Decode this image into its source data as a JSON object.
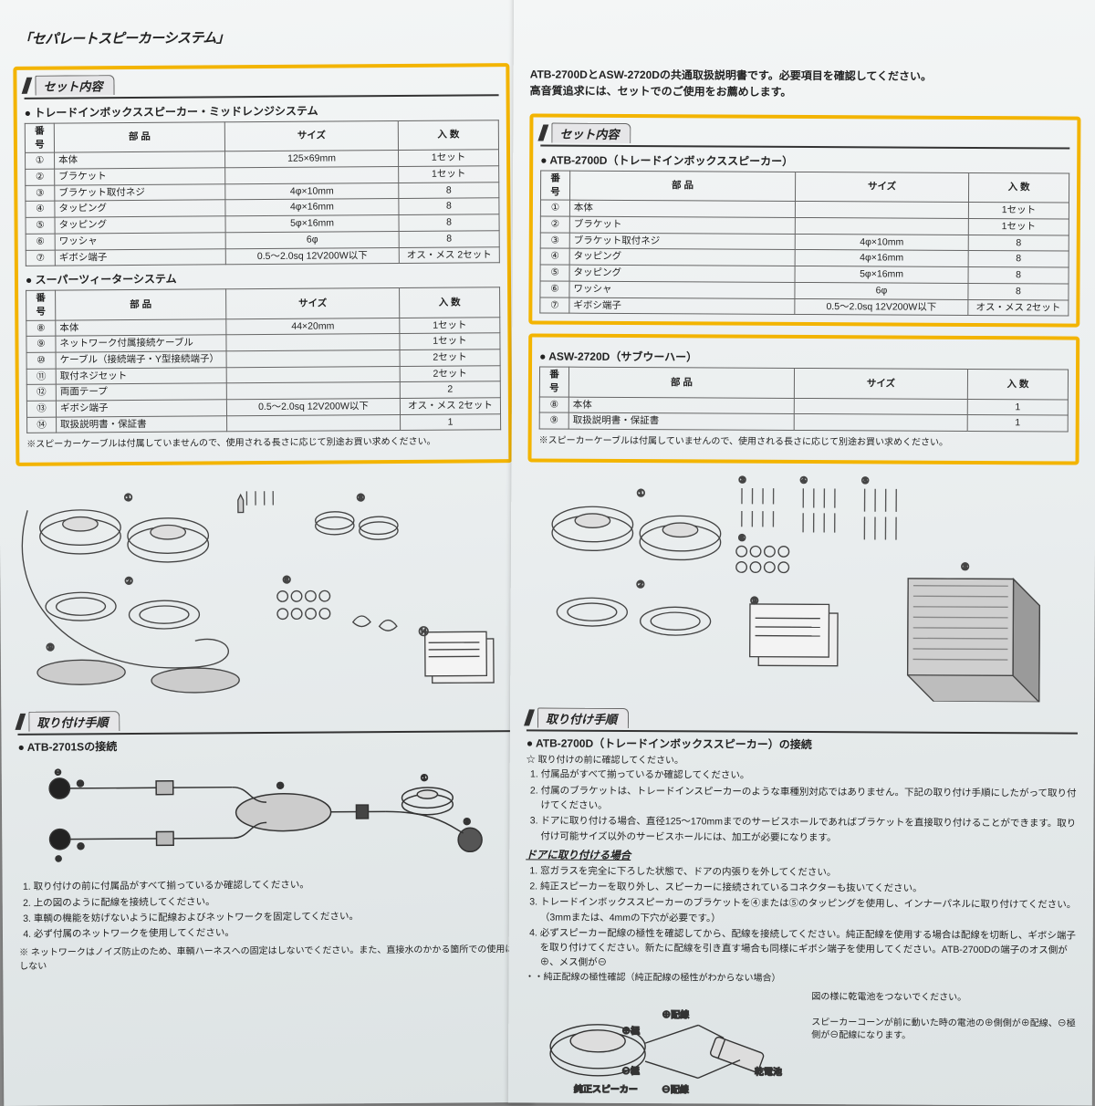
{
  "left": {
    "product_title": "「セパレートスピーカーシステム」",
    "section_set": "セット内容",
    "sub1": "トレードインボックススピーカー・ミッドレンジシステム",
    "sub2": "スーパーツィーターシステム",
    "th_num": "番 号",
    "th_part": "部 品",
    "th_size": "サイズ",
    "th_qty": "入 数",
    "t1": [
      {
        "n": "①",
        "p": "本体",
        "s": "125×69mm",
        "q": "1セット"
      },
      {
        "n": "②",
        "p": "ブラケット",
        "s": "",
        "q": "1セット"
      },
      {
        "n": "③",
        "p": "ブラケット取付ネジ",
        "s": "4φ×10mm",
        "q": "8"
      },
      {
        "n": "④",
        "p": "タッピング",
        "s": "4φ×16mm",
        "q": "8"
      },
      {
        "n": "⑤",
        "p": "タッピング",
        "s": "5φ×16mm",
        "q": "8"
      },
      {
        "n": "⑥",
        "p": "ワッシャ",
        "s": "6φ",
        "q": "8"
      },
      {
        "n": "⑦",
        "p": "ギボシ端子",
        "s": "0.5～2.0sq 12V200W以下",
        "q": "オス・メス 2セット"
      }
    ],
    "t2": [
      {
        "n": "⑧",
        "p": "本体",
        "s": "44×20mm",
        "q": "1セット"
      },
      {
        "n": "⑨",
        "p": "ネットワーク付属接続ケーブル",
        "s": "",
        "q": "1セット"
      },
      {
        "n": "⑩",
        "p": "ケーブル（接続端子・Y型接続端子）",
        "s": "",
        "q": "2セット"
      },
      {
        "n": "⑪",
        "p": "取付ネジセット",
        "s": "",
        "q": "2セット"
      },
      {
        "n": "⑫",
        "p": "両面テープ",
        "s": "",
        "q": "2"
      },
      {
        "n": "⑬",
        "p": "ギボシ端子",
        "s": "0.5～2.0sq 12V200W以下",
        "q": "オス・メス 2セット"
      },
      {
        "n": "⑭",
        "p": "取扱説明書・保証書",
        "s": "",
        "q": "1"
      }
    ],
    "cable_note": "※スピーカーケーブルは付属していませんので、使用される長さに応じて別途お買い求めください。",
    "section_proc": "取り付け手順",
    "proc_sub": "ATB-2701Sの接続",
    "proc": [
      "取り付けの前に付属品がすべて揃っているか確認してください。",
      "上の図のように配線を接続してください。",
      "車輌の機能を妨げないように配線およびネットワークを固定してください。",
      "必ず付属のネットワークを使用してください。"
    ],
    "proc_note": "※ ネットワークはノイズ防止のため、車輌ハーネスへの固定はしないでください。また、直接水のかかる箇所での使用はしない"
  },
  "right": {
    "intro1": "ATB-2700DとASW-2720Dの共通取扱説明書です。必要項目を確認してください。",
    "intro2": "高音質追求には、セットでのご使用をお薦めします。",
    "section_set": "セット内容",
    "sub1": "ATB-2700D（トレードインボックススピーカー）",
    "sub2": "ASW-2720D（サブウーハー）",
    "th_num": "番 号",
    "th_part": "部 品",
    "th_size": "サイズ",
    "th_qty": "入 数",
    "t1": [
      {
        "n": "①",
        "p": "本体",
        "s": "",
        "q": "1セット"
      },
      {
        "n": "②",
        "p": "ブラケット",
        "s": "",
        "q": "1セット"
      },
      {
        "n": "③",
        "p": "ブラケット取付ネジ",
        "s": "4φ×10mm",
        "q": "8"
      },
      {
        "n": "④",
        "p": "タッピング",
        "s": "4φ×16mm",
        "q": "8"
      },
      {
        "n": "⑤",
        "p": "タッピング",
        "s": "5φ×16mm",
        "q": "8"
      },
      {
        "n": "⑥",
        "p": "ワッシャ",
        "s": "6φ",
        "q": "8"
      },
      {
        "n": "⑦",
        "p": "ギボシ端子",
        "s": "0.5～2.0sq 12V200W以下",
        "q": "オス・メス 2セット"
      }
    ],
    "t2": [
      {
        "n": "⑧",
        "p": "本体",
        "s": "",
        "q": "1"
      },
      {
        "n": "⑨",
        "p": "取扱説明書・保証書",
        "s": "",
        "q": "1"
      }
    ],
    "cable_note": "※スピーカーケーブルは付属していませんので、使用される長さに応じて別途お買い求めください。",
    "section_proc": "取り付け手順",
    "proc_sub": "ATB-2700D（トレードインボックススピーカー）の接続",
    "pre": "取り付けの前に確認してください。",
    "proc1": [
      "付属品がすべて揃っているか確認してください。",
      "付属のブラケットは、トレードインスピーカーのような車種別対応ではありません。下記の取り付け手順にしたがって取り付けてください。",
      "ドアに取り付ける場合、直径125～170mmまでのサービスホールであればブラケットを直接取り付けることができます。取り付け可能サイズ以外のサービスホールには、加工が必要になります。"
    ],
    "door_head": "ドアに取り付ける場合",
    "proc2": [
      "窓ガラスを完全に下ろした状態で、ドアの内張りを外してください。",
      "純正スピーカーを取り外し、スピーカーに接続されているコネクターも抜いてください。",
      "トレードインボックススピーカーのブラケットを④または⑤のタッピングを使用し、インナーパネルに取り付けてください。（3mmまたは、4mmの下穴が必要です。）",
      "必ずスピーカー配線の極性を確認してから、配線を接続してください。純正配線を使用する場合は配線を切断し、ギボシ端子を取り付けてください。新たに配線を引き直す場合も同様にギボシ端子を使用してください。ATB-2700Dの端子のオス側が⊕、メス側が⊖"
    ],
    "pol_head": "・純正配線の極性確認（純正配線の極性がわからない場合）",
    "pol_labels": {
      "wplus": "⊕配線",
      "wminus": "⊖配線",
      "tplus": "⊕極",
      "tminus": "⊖極",
      "spk": "純正スピーカー",
      "bat": "乾電池"
    },
    "pol_txt1": "図の様に乾電池をつないでください。",
    "pol_txt2": "スピーカーコーンが前に動いた時の電池の⊕側側が⊕配線、⊖極側が⊖配線になります。"
  },
  "style": {
    "highlight_color": "#f3b400",
    "border_color": "#666666",
    "text_color": "#222222"
  }
}
